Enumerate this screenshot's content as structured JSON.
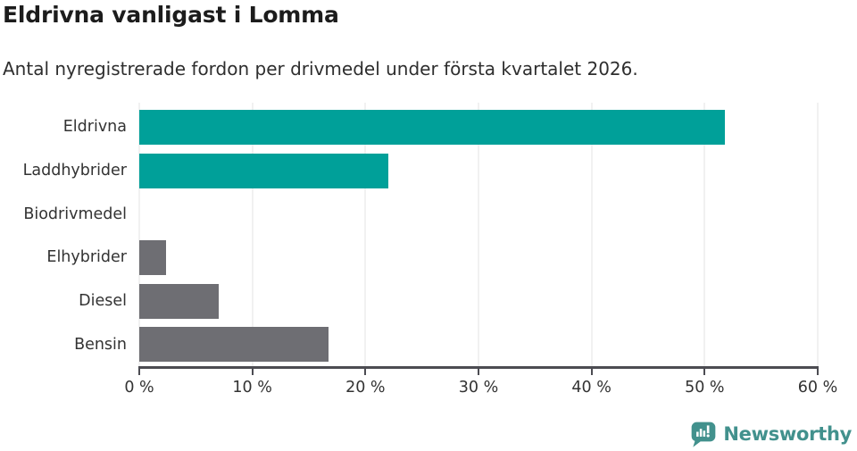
{
  "header": {
    "title": "Eldrivna vanligast i Lomma",
    "subtitle": "Antal nyregistrerade fordon per drivmedel under första kvartalet 2026."
  },
  "chart_data": {
    "type": "bar",
    "orientation": "horizontal",
    "title": "Eldrivna vanligast i Lomma",
    "subtitle": "Antal nyregistrerade fordon per drivmedel under första kvartalet 2026.",
    "categories": [
      "Eldrivna",
      "Laddhybrider",
      "Biodrivmedel",
      "Elhybrider",
      "Diesel",
      "Bensin"
    ],
    "values": [
      51.8,
      22,
      0,
      2.4,
      7,
      16.7
    ],
    "unit": "%",
    "xlabel": "",
    "ylabel": "",
    "xlim": [
      0,
      60
    ],
    "x_tick_values": [
      0,
      10,
      20,
      30,
      40,
      50,
      60
    ],
    "x_tick_labels": [
      "0 %",
      "10 %",
      "20 %",
      "30 %",
      "40 %",
      "50 %",
      "60 %"
    ],
    "grid": true,
    "legend_position": "none",
    "bar_colors": [
      "#00A099",
      "#00A099",
      "#6E6E73",
      "#6E6E73",
      "#6E6E73",
      "#6E6E73"
    ],
    "colors": {
      "highlight_bar": "#00A099",
      "default_bar": "#6E6E73",
      "gridline": "#E3E3E3",
      "axis_line": "#4C4C52",
      "tick_text": "#333333"
    }
  },
  "footer": {
    "brand": "Newsworthy",
    "brand_color": "#42918D"
  }
}
